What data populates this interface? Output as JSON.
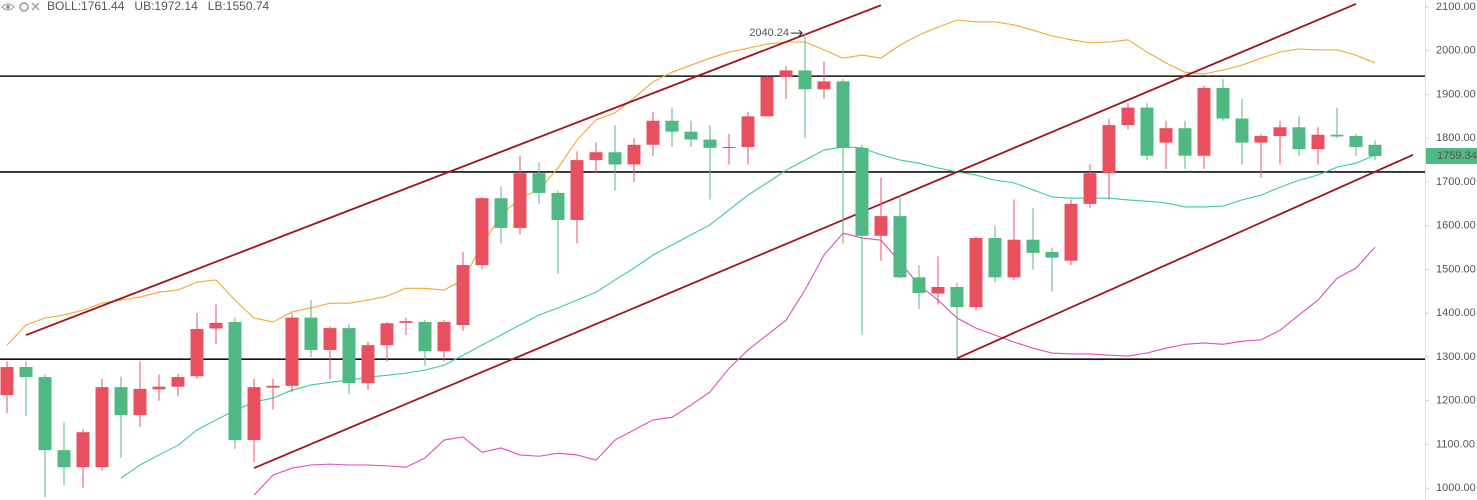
{
  "chart_data": {
    "type": "candlestick",
    "up_color": "#e8505f",
    "down_color": "#50b883",
    "open": [
      1213,
      1277,
      1254,
      1087,
      1048,
      1048,
      1231,
      1167,
      1226,
      1232,
      1256,
      1365,
      1380,
      1110,
      1230,
      1234,
      1390,
      1316,
      1366,
      1240,
      1327,
      1378,
      1380,
      1313,
      1373,
      1510,
      1663,
      1595,
      1720,
      1675,
      1613,
      1750,
      1768,
      1740,
      1785,
      1840,
      1815,
      1797,
      1778,
      1780,
      1850,
      1940,
      1955,
      1912,
      1930,
      1778,
      1577,
      1622,
      1482,
      1445,
      1460,
      1414,
      1572,
      1482,
      1568,
      1540,
      1520,
      1650,
      1720,
      1830,
      1870,
      1790,
      1823,
      1760,
      1915,
      1845,
      1790,
      1805,
      1825,
      1775,
      1808,
      1805,
      1785
    ],
    "high": [
      1290,
      1290,
      1260,
      1150,
      1135,
      1250,
      1255,
      1290,
      1260,
      1262,
      1400,
      1420,
      1390,
      1250,
      1250,
      1400,
      1430,
      1370,
      1375,
      1335,
      1380,
      1390,
      1385,
      1385,
      1540,
      1665,
      1690,
      1760,
      1745,
      1680,
      1770,
      1790,
      1830,
      1800,
      1860,
      1870,
      1840,
      1830,
      1810,
      1860,
      1945,
      1965,
      2040.24,
      1975,
      1935,
      1785,
      1710,
      1670,
      1510,
      1530,
      1470,
      1575,
      1600,
      1660,
      1640,
      1550,
      1660,
      1740,
      1845,
      1880,
      1880,
      1840,
      1840,
      1920,
      1935,
      1890,
      1810,
      1840,
      1850,
      1825,
      1870,
      1810,
      1795
    ],
    "low": [
      1172,
      1165,
      980,
      1007,
      1000,
      1040,
      1070,
      1140,
      1200,
      1210,
      1250,
      1330,
      1090,
      1060,
      1180,
      1220,
      1300,
      1250,
      1215,
      1225,
      1290,
      1350,
      1280,
      1290,
      1360,
      1500,
      1560,
      1580,
      1650,
      1490,
      1560,
      1720,
      1680,
      1700,
      1760,
      1780,
      1780,
      1660,
      1740,
      1740,
      1850,
      1890,
      1800,
      1890,
      1560,
      1350,
      1520,
      1480,
      1410,
      1420,
      1300,
      1405,
      1470,
      1475,
      1500,
      1450,
      1510,
      1640,
      1660,
      1820,
      1750,
      1730,
      1730,
      1730,
      1840,
      1740,
      1710,
      1740,
      1760,
      1740,
      1800,
      1760,
      1750
    ],
    "close": [
      1277,
      1254,
      1087,
      1048,
      1128,
      1231,
      1167,
      1227,
      1232,
      1254,
      1364,
      1378,
      1110,
      1231,
      1234,
      1390,
      1316,
      1366,
      1240,
      1327,
      1377,
      1382,
      1313,
      1380,
      1510,
      1663,
      1595,
      1720,
      1675,
      1613,
      1750,
      1768,
      1740,
      1785,
      1840,
      1815,
      1797,
      1778,
      1780,
      1850,
      1940,
      1955,
      1912,
      1930,
      1778,
      1577,
      1622,
      1482,
      1446,
      1460,
      1414,
      1572,
      1482,
      1568,
      1538,
      1527,
      1650,
      1720,
      1830,
      1870,
      1760,
      1823,
      1760,
      1915,
      1845,
      1790,
      1805,
      1825,
      1775,
      1808,
      1804,
      1780,
      1759.34
    ],
    "bands": [
      {
        "name": "BOLL:1761.44",
        "color": "#3cc8a8",
        "values": [
          null,
          null,
          null,
          null,
          null,
          null,
          1023,
          1053,
          1076,
          1098,
          1133,
          1156,
          1178,
          1197,
          1206,
          1224,
          1236,
          1242,
          1247,
          1254,
          1258,
          1263,
          1270,
          1281,
          1304,
          1327,
          1350,
          1373,
          1396,
          1412,
          1430,
          1448,
          1476,
          1503,
          1533,
          1556,
          1579,
          1602,
          1636,
          1670,
          1698,
          1727,
          1750,
          1773,
          1780,
          1778,
          1762,
          1750,
          1743,
          1732,
          1723,
          1716,
          1704,
          1698,
          1682,
          1666,
          1663,
          1663,
          1663,
          1659,
          1656,
          1652,
          1643,
          1643,
          1645,
          1659,
          1670,
          1688,
          1704,
          1716,
          1734,
          1743,
          1761.44
        ]
      },
      {
        "name": "UB:1972.14",
        "color": "#f0a830",
        "values": [
          1327,
          1373,
          1389,
          1396,
          1407,
          1423,
          1430,
          1437,
          1448,
          1453,
          1471,
          1476,
          1430,
          1389,
          1380,
          1403,
          1412,
          1423,
          1423,
          1430,
          1439,
          1457,
          1457,
          1453,
          1476,
          1556,
          1624,
          1663,
          1682,
          1732,
          1796,
          1842,
          1858,
          1892,
          1929,
          1951,
          1967,
          1983,
          1997,
          2006,
          2015,
          2020,
          2020,
          2002,
          1983,
          1990,
          1983,
          2013,
          2036,
          2054,
          2070,
          2066,
          2066,
          2059,
          2047,
          2034,
          2025,
          2018,
          2020,
          2025,
          1997,
          1972,
          1951,
          1947,
          1956,
          1967,
          1983,
          1997,
          2004,
          2002,
          2002,
          1990,
          1972.14
        ]
      },
      {
        "name": "LB:1550.74",
        "color": "#e04cc0",
        "values": [
          null,
          null,
          null,
          null,
          null,
          null,
          null,
          null,
          null,
          null,
          null,
          null,
          null,
          984,
          1030,
          1046,
          1053,
          1055,
          1053,
          1053,
          1051,
          1048,
          1069,
          1110,
          1117,
          1082,
          1092,
          1076,
          1073,
          1080,
          1076,
          1064,
          1110,
          1133,
          1156,
          1162,
          1190,
          1220,
          1274,
          1316,
          1350,
          1384,
          1453,
          1533,
          1583,
          1572,
          1567,
          1517,
          1464,
          1430,
          1389,
          1366,
          1350,
          1334,
          1320,
          1309,
          1307,
          1307,
          1304,
          1302,
          1309,
          1320,
          1329,
          1332,
          1329,
          1336,
          1339,
          1361,
          1396,
          1430,
          1480,
          1503,
          1550.74
        ]
      }
    ],
    "hlines": [
      1942,
      1723,
      1295
    ],
    "hline_color": "#111111",
    "trend_lines": [
      {
        "points": [
          [
            1,
            1350
          ],
          [
            46,
            2104
          ]
        ]
      },
      {
        "points": [
          [
            13,
            1046
          ],
          [
            71,
            2107
          ]
        ]
      },
      {
        "points": [
          [
            50,
            1297
          ],
          [
            74,
            1762
          ]
        ]
      }
    ],
    "trend_color": "#a3141e",
    "ylim": [
      973,
      2116
    ],
    "yticks": [
      {
        "value": 1000,
        "label": "1000.00"
      },
      {
        "value": 1100,
        "label": "1100.00"
      },
      {
        "value": 1200,
        "label": "1200.00"
      },
      {
        "value": 1300,
        "label": "1300.00"
      },
      {
        "value": 1400,
        "label": "1400.00"
      },
      {
        "value": 1500,
        "label": "1500.00"
      },
      {
        "value": 1600,
        "label": "1600.00"
      },
      {
        "value": 1700,
        "label": "1700.00"
      },
      {
        "value": 1800,
        "label": "1800.00"
      },
      {
        "value": 1900,
        "label": "1900.00"
      },
      {
        "value": 2000,
        "label": "2000.00"
      },
      {
        "value": 2100,
        "label": "2100.00"
      }
    ]
  }
}
